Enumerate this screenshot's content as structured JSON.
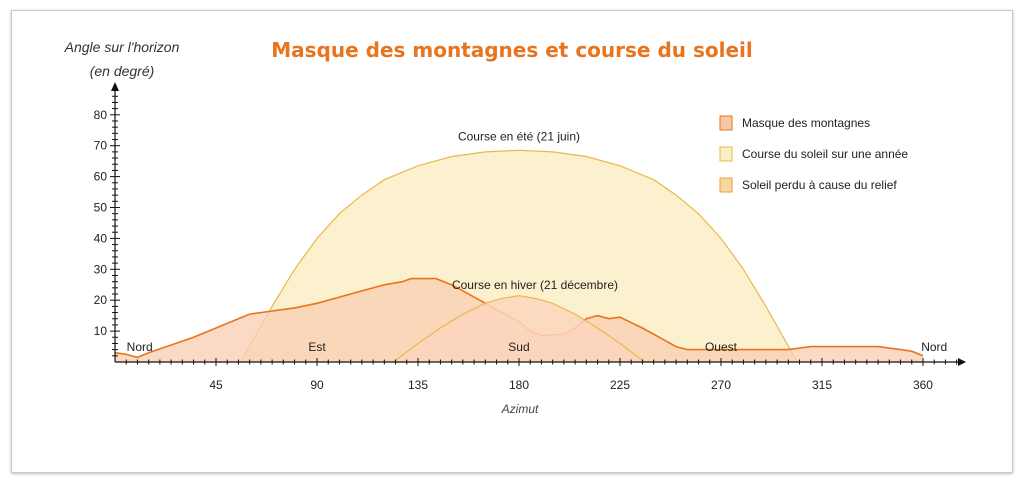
{
  "title": "Masque des montagnes et course du soleil",
  "chart_data": {
    "type": "area",
    "title": "Masque des montagnes et course du soleil",
    "ylabel_line1": "Angle sur l'horizon",
    "ylabel_line2": "(en degré)",
    "xlabel": "Azimut",
    "xlim": [
      0,
      380
    ],
    "ylim": [
      0,
      88
    ],
    "x_ticks": [
      45,
      90,
      135,
      180,
      225,
      270,
      315,
      360
    ],
    "y_ticks": [
      10,
      20,
      30,
      40,
      50,
      60,
      70,
      80
    ],
    "direction_labels": [
      {
        "label": "Nord",
        "azimut": 11
      },
      {
        "label": "Est",
        "azimut": 90
      },
      {
        "label": "Sud",
        "azimut": 180
      },
      {
        "label": "Ouest",
        "azimut": 270
      },
      {
        "label": "Nord",
        "azimut": 365
      }
    ],
    "annotations": [
      {
        "text": "Course en été (21 juin)",
        "azimut": 180,
        "angle": 73
      },
      {
        "text": "Course en hiver (21 décembre)",
        "azimut": 180,
        "angle": 25
      }
    ],
    "legend": [
      {
        "label": "Masque des montagnes",
        "color": "#f7c6a6",
        "stroke": "#e8741e"
      },
      {
        "label": "Course du soleil sur une année",
        "color": "#fbeec6",
        "stroke": "#eab84a"
      },
      {
        "label": "Soleil perdu à cause du relief",
        "color": "#f7d7a0",
        "stroke": "#e8a040"
      }
    ],
    "legend_position": "top-right",
    "series": [
      {
        "name": "Masque des montagnes",
        "color": "#f9cfb4",
        "stroke": "#e8741e",
        "points": [
          [
            0,
            3
          ],
          [
            5,
            2.5
          ],
          [
            10,
            1.5
          ],
          [
            15,
            3
          ],
          [
            25,
            5.5
          ],
          [
            35,
            8
          ],
          [
            45,
            11
          ],
          [
            55,
            14
          ],
          [
            60,
            15.5
          ],
          [
            70,
            16.5
          ],
          [
            80,
            17.5
          ],
          [
            90,
            19
          ],
          [
            100,
            21
          ],
          [
            110,
            23
          ],
          [
            120,
            25
          ],
          [
            128,
            26
          ],
          [
            132,
            27
          ],
          [
            143,
            27
          ],
          [
            150,
            25
          ],
          [
            160,
            21
          ],
          [
            170,
            17
          ],
          [
            180,
            13
          ],
          [
            185,
            10
          ],
          [
            190,
            8.5
          ],
          [
            200,
            9
          ],
          [
            205,
            11
          ],
          [
            210,
            14
          ],
          [
            215,
            15
          ],
          [
            220,
            14
          ],
          [
            225,
            14.5
          ],
          [
            235,
            11
          ],
          [
            245,
            7
          ],
          [
            250,
            5
          ],
          [
            255,
            4
          ],
          [
            270,
            4
          ],
          [
            280,
            4
          ],
          [
            290,
            4
          ],
          [
            300,
            4
          ],
          [
            310,
            5
          ],
          [
            320,
            5
          ],
          [
            330,
            5
          ],
          [
            340,
            5
          ],
          [
            345,
            4.5
          ],
          [
            350,
            4
          ],
          [
            355,
            3.5
          ],
          [
            360,
            2
          ]
        ]
      },
      {
        "name": "Course en été (21 juin)",
        "color": "#fbeec6",
        "stroke": "#eab84a",
        "points": [
          [
            56,
            0
          ],
          [
            70,
            18
          ],
          [
            80,
            30
          ],
          [
            90,
            40
          ],
          [
            100,
            48
          ],
          [
            110,
            54
          ],
          [
            120,
            59
          ],
          [
            135,
            63.5
          ],
          [
            150,
            66.5
          ],
          [
            165,
            68
          ],
          [
            180,
            68.5
          ],
          [
            195,
            68
          ],
          [
            210,
            66.5
          ],
          [
            225,
            63.5
          ],
          [
            240,
            59
          ],
          [
            250,
            54
          ],
          [
            260,
            48
          ],
          [
            270,
            40
          ],
          [
            280,
            30
          ],
          [
            290,
            18
          ],
          [
            304,
            0
          ]
        ]
      },
      {
        "name": "Course en hiver (21 décembre)",
        "color": "#fad6bd",
        "stroke": "#eab84a",
        "points": [
          [
            124,
            0
          ],
          [
            135,
            6
          ],
          [
            145,
            11
          ],
          [
            155,
            15.5
          ],
          [
            165,
            19
          ],
          [
            172,
            20.5
          ],
          [
            180,
            21.5
          ],
          [
            188,
            20.5
          ],
          [
            195,
            19
          ],
          [
            205,
            15.5
          ],
          [
            215,
            11
          ],
          [
            225,
            6
          ],
          [
            236,
            0
          ]
        ]
      }
    ]
  }
}
